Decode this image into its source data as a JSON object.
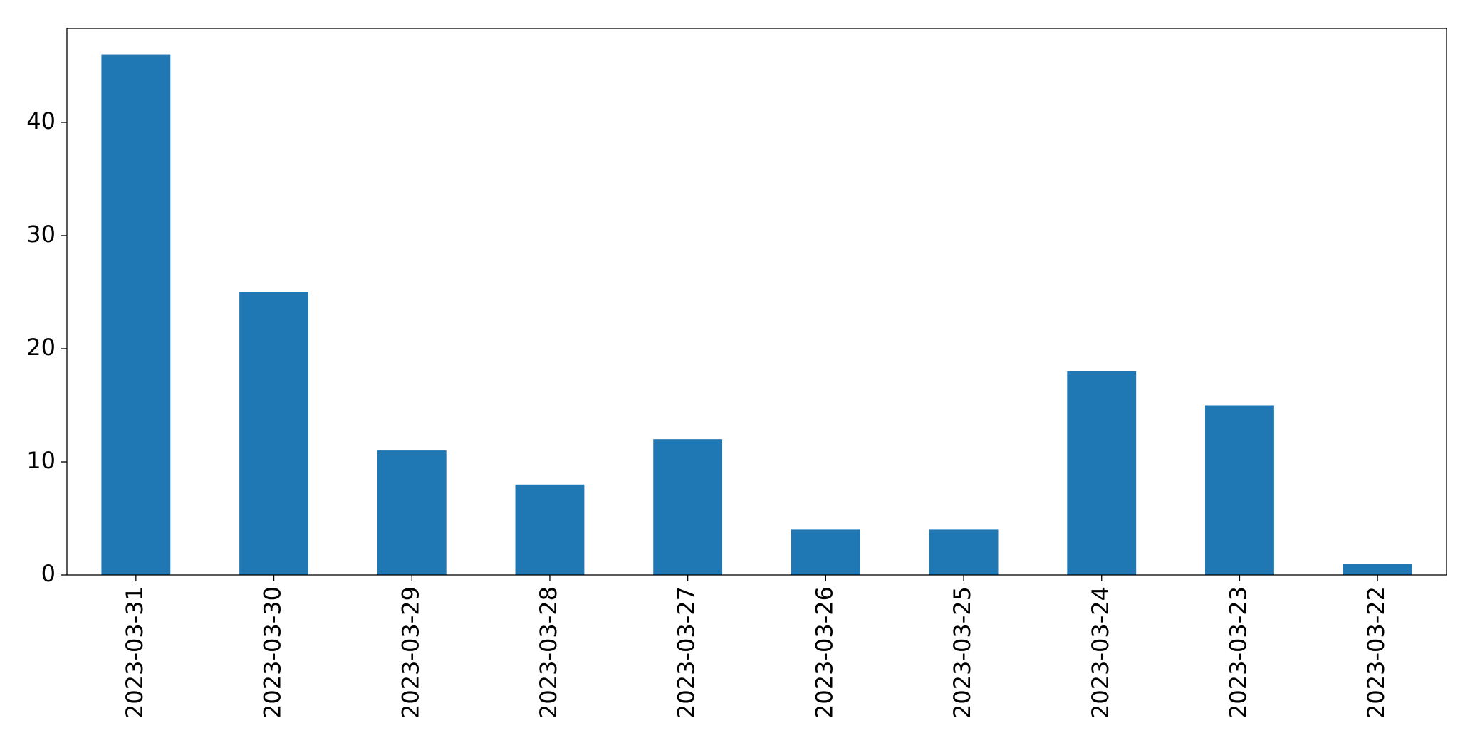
{
  "chart_data": {
    "type": "bar",
    "categories": [
      "2023-03-31",
      "2023-03-30",
      "2023-03-29",
      "2023-03-28",
      "2023-03-27",
      "2023-03-26",
      "2023-03-25",
      "2023-03-24",
      "2023-03-23",
      "2023-03-22"
    ],
    "values": [
      46,
      25,
      11,
      8,
      12,
      4,
      4,
      18,
      15,
      1
    ],
    "color": "#1f77b4",
    "ylim": [
      0,
      48.3
    ],
    "yticks": [
      0,
      10,
      20,
      30,
      40
    ],
    "grid": false
  }
}
